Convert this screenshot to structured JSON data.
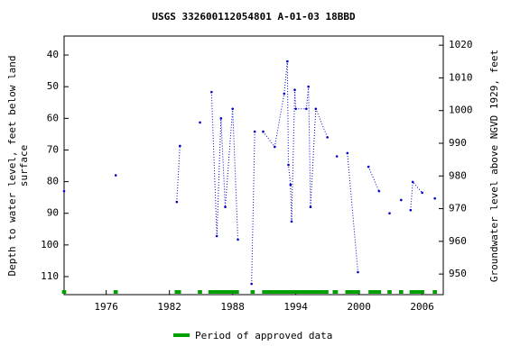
{
  "chart_data": {
    "type": "line",
    "title": "USGS 332600112054801 A-01-03 18BBD",
    "y_label": [
      "Depth to water level, feet below land",
      "surface"
    ],
    "y2_label": "Groundwater level above NGVD 1929, feet",
    "xlim": [
      1972.0,
      2008.0
    ],
    "xticks": [
      1976,
      1982,
      1988,
      1994,
      2000,
      2006
    ],
    "ylim": [
      34.0,
      115.7
    ],
    "y_inverted": true,
    "yticks": [
      40,
      50,
      60,
      70,
      80,
      90,
      100,
      110
    ],
    "y2lim": [
      943.7,
      1022.8
    ],
    "y2ticks": [
      950,
      960,
      970,
      980,
      990,
      1000,
      1010,
      1020
    ],
    "series": [
      {
        "color": "#0000c8",
        "x": [
          1972.0,
          null,
          1976.9,
          null,
          1982.7,
          1983.0,
          null,
          1984.9,
          null,
          1986.0,
          1986.5,
          1986.9,
          1987.3,
          1988.0,
          1988.5,
          null,
          1989.8,
          1990.1,
          null,
          1990.9,
          1992.0,
          1992.9,
          1993.2,
          1993.3,
          1993.5,
          1993.6,
          1993.9,
          1994.0,
          1995.0,
          1995.2,
          1995.4,
          1995.9,
          1997.0,
          null,
          1997.9,
          null,
          1998.9,
          1999.9,
          null,
          2000.9,
          2001.9,
          null,
          2002.9,
          null,
          2004.0,
          null,
          2004.9,
          2005.1,
          2006.0,
          null,
          2007.2
        ],
        "values": [
          83.0,
          null,
          78.0,
          null,
          86.4,
          68.7,
          null,
          61.3,
          null,
          51.7,
          97.2,
          60.0,
          88.0,
          57.0,
          98.3,
          null,
          112.3,
          64.2,
          null,
          64.2,
          69.0,
          52.2,
          42.0,
          74.7,
          81.0,
          92.6,
          51.0,
          57.0,
          57.0,
          50.0,
          88.0,
          57.0,
          66.0,
          null,
          72.0,
          null,
          71.0,
          108.6,
          null,
          75.3,
          83.0,
          null,
          90.0,
          null,
          85.8,
          null,
          89.0,
          80.1,
          83.5,
          null,
          85.3
        ]
      }
    ],
    "approved": {
      "name": "Period of approved data",
      "color": "#00a000",
      "periods": [
        [
          1971.8,
          1972.2
        ],
        [
          1976.7,
          1977.1
        ],
        [
          1982.5,
          1983.1
        ],
        [
          1984.7,
          1985.1
        ],
        [
          1985.7,
          1988.6
        ],
        [
          1989.7,
          1990.1
        ],
        [
          1990.8,
          1997.1
        ],
        [
          1997.5,
          1998.0
        ],
        [
          1998.7,
          2000.1
        ],
        [
          2000.9,
          2002.1
        ],
        [
          2002.7,
          2003.1
        ],
        [
          2003.8,
          2004.2
        ],
        [
          2004.8,
          2006.2
        ],
        [
          2007.0,
          2007.4
        ]
      ]
    }
  }
}
